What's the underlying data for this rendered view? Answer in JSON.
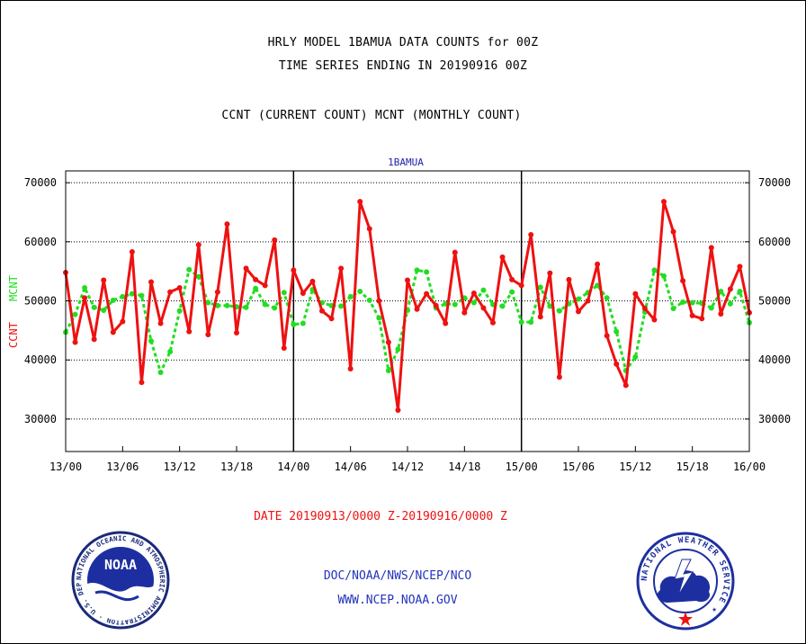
{
  "header": {
    "title_line1": "HRLY MODEL 1BAMUA DATA COUNTS for 00Z",
    "title_line2": "TIME SERIES ENDING IN 20190916 00Z",
    "title_line3": "CCNT (CURRENT COUNT) MCNT (MONTHLY COUNT)"
  },
  "footer": {
    "date_range": "DATE 20190913/0000 Z-20190916/0000 Z",
    "org_line": "DOC/NOAA/NWS/NCEP/NCO",
    "url_line": "WWW.NCEP.NOAA.GOV"
  },
  "logos": {
    "noaa_text": "NOAA",
    "noaa_ring": "NATIONAL OCEANIC AND ATMOSPHERIC ADMINISTRATION · U.S. DEPARTMENT OF COMMERCE ·",
    "nws_ring": "NATIONAL WEATHER SERVICE ★"
  },
  "colors": {
    "ccnt": "#ee1111",
    "mcnt": "#22dd22",
    "panel_label": "#2222aa",
    "axis_title_ccnt": "#ee1111",
    "axis_title_mcnt": "#22dd22",
    "footer_blue": "#2233bb",
    "date_red": "#ee1111"
  },
  "chart_data": {
    "type": "line",
    "panel_label": "1BAMUA",
    "ylabel_ccnt": "CCNT",
    "ylabel_mcnt": "MCNT",
    "ylim": [
      24500,
      72000
    ],
    "y_ticks": [
      30000,
      40000,
      50000,
      60000,
      70000
    ],
    "y_tick_labels": [
      "30000",
      "40000",
      "50000",
      "60000",
      "70000"
    ],
    "x_range_hours": [
      0,
      72
    ],
    "x_tick_labels": [
      "13/00",
      "13/06",
      "13/12",
      "13/18",
      "14/00",
      "14/06",
      "14/12",
      "14/18",
      "15/00",
      "15/06",
      "15/12",
      "15/18",
      "16/00"
    ],
    "x_tick_hours": [
      0,
      6,
      12,
      18,
      24,
      30,
      36,
      42,
      48,
      54,
      60,
      66,
      72
    ],
    "day_separators_hours": [
      24,
      48
    ],
    "grid": true,
    "series": [
      {
        "name": "CCNT",
        "values": [
          54800,
          43000,
          50500,
          43500,
          53500,
          44700,
          46500,
          58300,
          36200,
          53200,
          46200,
          51500,
          52200,
          44800,
          59500,
          44300,
          51500,
          63000,
          44600,
          55500,
          53600,
          52600,
          60300,
          42000,
          55200,
          51300,
          53300,
          48300,
          47000,
          55500,
          38500,
          66800,
          62200,
          50000,
          43000,
          31500,
          53500,
          48600,
          51200,
          49200,
          46200,
          58200,
          48000,
          51300,
          48800,
          46300,
          57400,
          53600,
          52600,
          61200,
          47300,
          54700,
          37100,
          53600,
          48200,
          50000,
          56200,
          44100,
          39300,
          35700,
          51200,
          48700,
          46800,
          66800,
          61700,
          53400,
          47500,
          47000,
          59000,
          47800,
          52000,
          55800,
          48000
        ]
      },
      {
        "name": "MCNT",
        "values": [
          44700,
          47700,
          52200,
          48900,
          48400,
          50100,
          50700,
          51200,
          50900,
          43200,
          37900,
          41400,
          48300,
          55300,
          54100,
          49700,
          49200,
          49200,
          49000,
          48900,
          52100,
          49400,
          48800,
          51400,
          46000,
          46200,
          51900,
          49700,
          49200,
          49100,
          50700,
          51600,
          50100,
          47100,
          38200,
          41800,
          48400,
          55200,
          54900,
          48800,
          49500,
          49400,
          50500,
          49700,
          51800,
          49400,
          49100,
          51500,
          46400,
          46400,
          52300,
          49100,
          48300,
          49500,
          50300,
          51400,
          52600,
          50500,
          44800,
          38200,
          40500,
          48100,
          55200,
          54200,
          48700,
          49800,
          49700,
          49600,
          48800,
          51600,
          49500,
          51600,
          46300
        ]
      }
    ]
  }
}
